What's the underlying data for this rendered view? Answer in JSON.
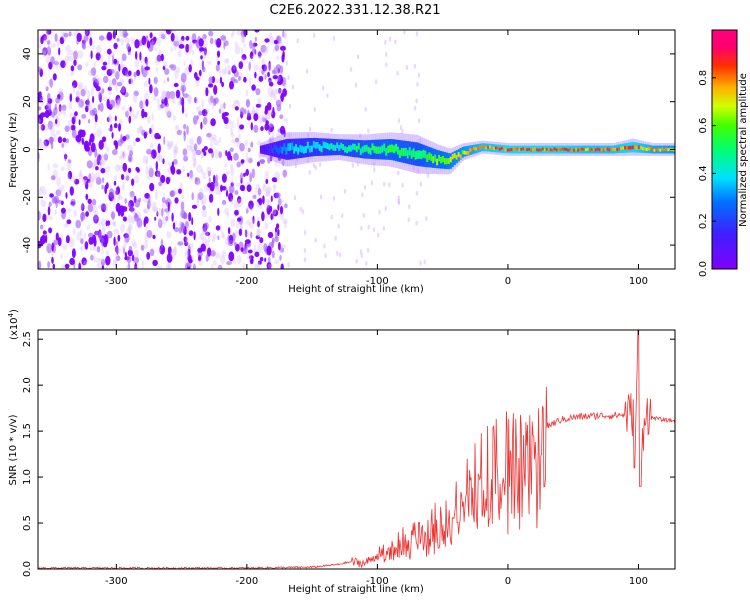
{
  "title": "C2E6.2022.331.12.38.R21",
  "chart_data": [
    {
      "type": "heatmap",
      "xlabel": "Height of straight line (km)",
      "ylabel": "Frequency (Hz)",
      "xlim": [
        -360,
        128
      ],
      "ylim": [
        -50,
        50
      ],
      "x_ticks": [
        -300,
        -200,
        -100,
        0,
        100
      ],
      "x_tick_labels": [
        "-300",
        "-200",
        "-100",
        "0",
        "100"
      ],
      "y_ticks": [
        -40,
        -20,
        0,
        20,
        40
      ],
      "y_tick_labels": [
        "-40",
        "-20",
        "0",
        "20",
        "40"
      ],
      "colorbar": {
        "label": "Normalized spectral amplitude",
        "range": [
          0,
          1
        ],
        "ticks": [
          0,
          0.2,
          0.4,
          0.6,
          0.8
        ],
        "tick_labels": [
          "0.0",
          "0.2",
          "0.4",
          "0.6",
          "0.8"
        ],
        "colormap": "rainbow (purple-blue-cyan-green-yellow-orange-red-magenta)"
      },
      "band": {
        "x": [
          -190,
          -170,
          -150,
          -130,
          -110,
          -90,
          -70,
          -55,
          -45,
          -35,
          -20,
          0,
          20,
          40,
          60,
          80,
          95,
          110,
          128
        ],
        "freq_center": [
          0,
          0,
          1,
          1,
          0,
          0,
          -2,
          -4,
          -5,
          -1,
          1,
          0,
          0,
          0,
          0,
          0,
          1,
          0,
          0
        ],
        "freq_width": [
          3,
          8,
          7,
          6,
          7,
          8,
          9,
          7,
          6,
          4,
          3,
          3,
          3,
          3,
          3,
          3,
          4,
          3,
          3
        ],
        "peak_amplitude": [
          0.1,
          0.35,
          0.4,
          0.45,
          0.5,
          0.55,
          0.5,
          0.6,
          0.65,
          0.7,
          0.8,
          0.85,
          0.85,
          0.85,
          0.8,
          0.8,
          0.85,
          0.75,
          0.7
        ]
      }
    },
    {
      "type": "line",
      "xlabel": "Height of straight line (km)",
      "ylabel": "SNR (10 * v/v)",
      "y_multiplier_label": "(x10",
      "y_multiplier_exp": "4",
      "y_multiplier_close": ")",
      "xlim": [
        -360,
        128
      ],
      "ylim": [
        0,
        2.6
      ],
      "x_ticks": [
        -300,
        -200,
        -100,
        0,
        100
      ],
      "x_tick_labels": [
        "-300",
        "-200",
        "-100",
        "0",
        "100"
      ],
      "y_ticks": [
        0,
        0.5,
        1.0,
        1.5,
        2.0,
        2.5
      ],
      "y_tick_labels": [
        "0.0",
        "0.5",
        "1.0",
        "1.5",
        "2.0",
        "2.5"
      ],
      "color": "#ee3333",
      "series": [
        {
          "x": [
            -360,
            -300,
            -250,
            -200,
            -150,
            -130,
            -120,
            -110,
            -100,
            -90,
            -80,
            -70,
            -60,
            -50,
            -40,
            -30,
            -20,
            -10,
            0,
            10,
            20,
            30,
            40,
            50,
            60,
            70,
            80,
            90,
            95,
            98,
            100,
            102,
            105,
            110,
            120,
            128
          ],
          "y": [
            0.01,
            0.01,
            0.01,
            0.01,
            0.02,
            0.05,
            0.08,
            0.06,
            0.15,
            0.2,
            0.3,
            0.35,
            0.45,
            0.5,
            0.7,
            0.8,
            1.0,
            1.1,
            1.2,
            1.35,
            1.45,
            1.55,
            1.62,
            1.65,
            1.66,
            1.67,
            1.67,
            1.68,
            1.7,
            1.5,
            2.6,
            1.2,
            1.75,
            1.65,
            1.62,
            1.61
          ]
        }
      ]
    }
  ]
}
